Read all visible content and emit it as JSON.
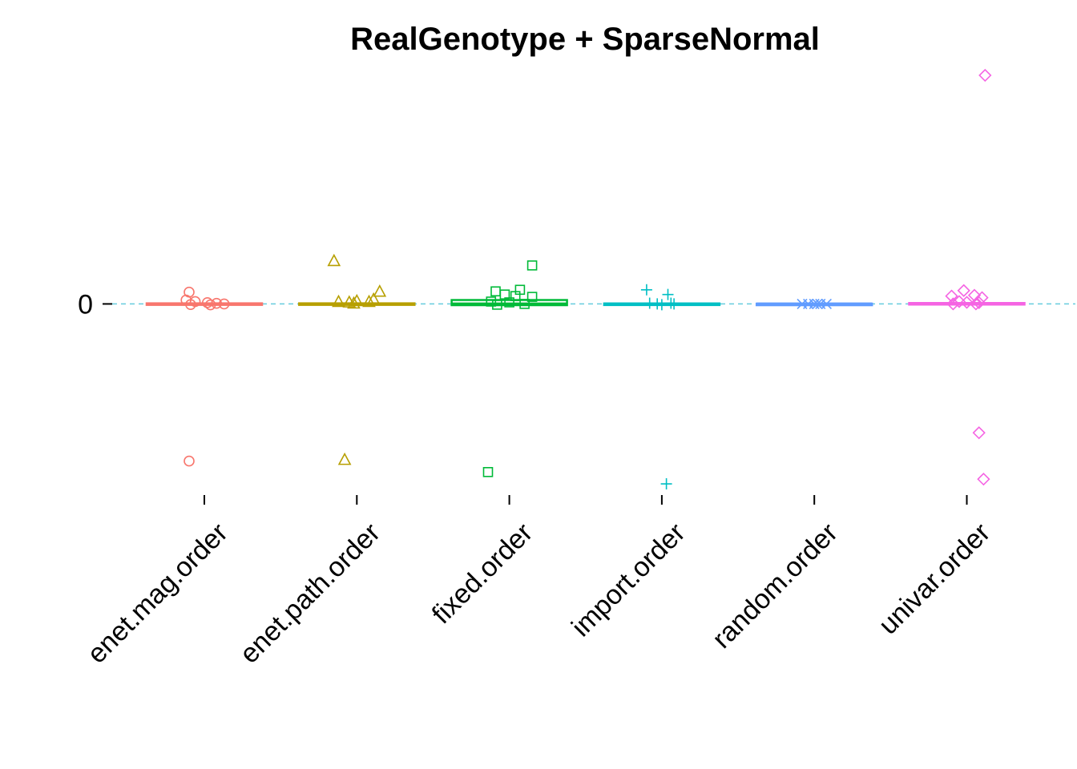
{
  "chart_data": {
    "type": "box",
    "title": "RealGenotype + SparseNormal",
    "xlabel": "",
    "ylabel": "",
    "y_ticks": [
      {
        "value": 0,
        "label": "0"
      }
    ],
    "reference_line": {
      "y": 0,
      "style": "dashed",
      "color": "#66CCDD"
    },
    "grid": false,
    "legend": "none",
    "ylim": [
      -1.15,
      1.45
    ],
    "categories": [
      "enet.mag.order",
      "enet.path.order",
      "fixed.order",
      "import.order",
      "random.order",
      "univar.order"
    ],
    "series": [
      {
        "category": "enet.mag.order",
        "color": "#F8766D",
        "marker": "circle",
        "box": {
          "q1": -0.004,
          "median": 0,
          "q3": 0.004
        },
        "points": [
          {
            "dx": -0.1,
            "y": 0.075
          },
          {
            "dx": -0.12,
            "y": 0.025
          },
          {
            "dx": -0.06,
            "y": 0.015
          },
          {
            "dx": 0.02,
            "y": 0.008
          },
          {
            "dx": 0.08,
            "y": 0.004
          },
          {
            "dx": -0.09,
            "y": -0.004
          },
          {
            "dx": 0.13,
            "y": 0.0
          },
          {
            "dx": 0.04,
            "y": -0.006
          },
          {
            "dx": -0.1,
            "y": -1.0
          }
        ]
      },
      {
        "category": "enet.path.order",
        "color": "#B79F00",
        "marker": "triangle",
        "box": {
          "q1": -0.004,
          "median": 0,
          "q3": 0.004
        },
        "points": [
          {
            "dx": -0.15,
            "y": 0.275
          },
          {
            "dx": 0.15,
            "y": 0.08
          },
          {
            "dx": -0.12,
            "y": 0.015
          },
          {
            "dx": -0.05,
            "y": 0.012
          },
          {
            "dx": 0.0,
            "y": 0.02
          },
          {
            "dx": 0.08,
            "y": 0.015
          },
          {
            "dx": 0.11,
            "y": 0.03
          },
          {
            "dx": -0.02,
            "y": 0.005
          },
          {
            "dx": -0.08,
            "y": -0.99
          }
        ]
      },
      {
        "category": "fixed.order",
        "color": "#00BA38",
        "marker": "square",
        "box": {
          "q1": -0.008,
          "median": 0,
          "q3": 0.025
        },
        "points": [
          {
            "dx": 0.15,
            "y": 0.245
          },
          {
            "dx": 0.07,
            "y": 0.09
          },
          {
            "dx": -0.09,
            "y": 0.08
          },
          {
            "dx": -0.03,
            "y": 0.06
          },
          {
            "dx": 0.15,
            "y": 0.045
          },
          {
            "dx": 0.04,
            "y": 0.05
          },
          {
            "dx": -0.12,
            "y": 0.015
          },
          {
            "dx": 0.0,
            "y": 0.01
          },
          {
            "dx": -0.08,
            "y": -0.005
          },
          {
            "dx": 0.1,
            "y": 0.0
          },
          {
            "dx": -0.14,
            "y": -1.07
          }
        ]
      },
      {
        "category": "import.order",
        "color": "#00BFC4",
        "marker": "plus",
        "box": {
          "q1": -0.003,
          "median": 0,
          "q3": 0.003
        },
        "points": [
          {
            "dx": -0.1,
            "y": 0.09
          },
          {
            "dx": 0.04,
            "y": 0.06
          },
          {
            "dx": -0.08,
            "y": 0.005
          },
          {
            "dx": -0.03,
            "y": 0.0
          },
          {
            "dx": 0.0,
            "y": -0.005
          },
          {
            "dx": 0.06,
            "y": 0.005
          },
          {
            "dx": 0.08,
            "y": 0.0
          },
          {
            "dx": 0.03,
            "y": -1.145
          }
        ]
      },
      {
        "category": "random.order",
        "color": "#619CFF",
        "marker": "cross",
        "box": {
          "q1": -0.002,
          "median": 0,
          "q3": 0.002
        },
        "points": [
          {
            "dx": -0.08,
            "y": 0.0
          },
          {
            "dx": -0.04,
            "y": 0.0
          },
          {
            "dx": 0.0,
            "y": 0.0
          },
          {
            "dx": 0.04,
            "y": 0.0
          },
          {
            "dx": 0.08,
            "y": 0.0
          },
          {
            "dx": 0.02,
            "y": 0.0
          }
        ]
      },
      {
        "category": "univar.order",
        "color": "#F564E3",
        "marker": "diamond",
        "box": {
          "q1": -0.003,
          "median": 0,
          "q3": 0.006
        },
        "points": [
          {
            "dx": 0.12,
            "y": 1.455
          },
          {
            "dx": -0.02,
            "y": 0.085
          },
          {
            "dx": 0.05,
            "y": 0.055
          },
          {
            "dx": -0.1,
            "y": 0.05
          },
          {
            "dx": 0.1,
            "y": 0.04
          },
          {
            "dx": -0.05,
            "y": 0.015
          },
          {
            "dx": 0.0,
            "y": 0.01
          },
          {
            "dx": 0.08,
            "y": 0.008
          },
          {
            "dx": -0.09,
            "y": 0.0
          },
          {
            "dx": 0.06,
            "y": 0.0
          },
          {
            "dx": 0.08,
            "y": -0.82
          },
          {
            "dx": 0.11,
            "y": -1.115
          }
        ]
      }
    ]
  }
}
